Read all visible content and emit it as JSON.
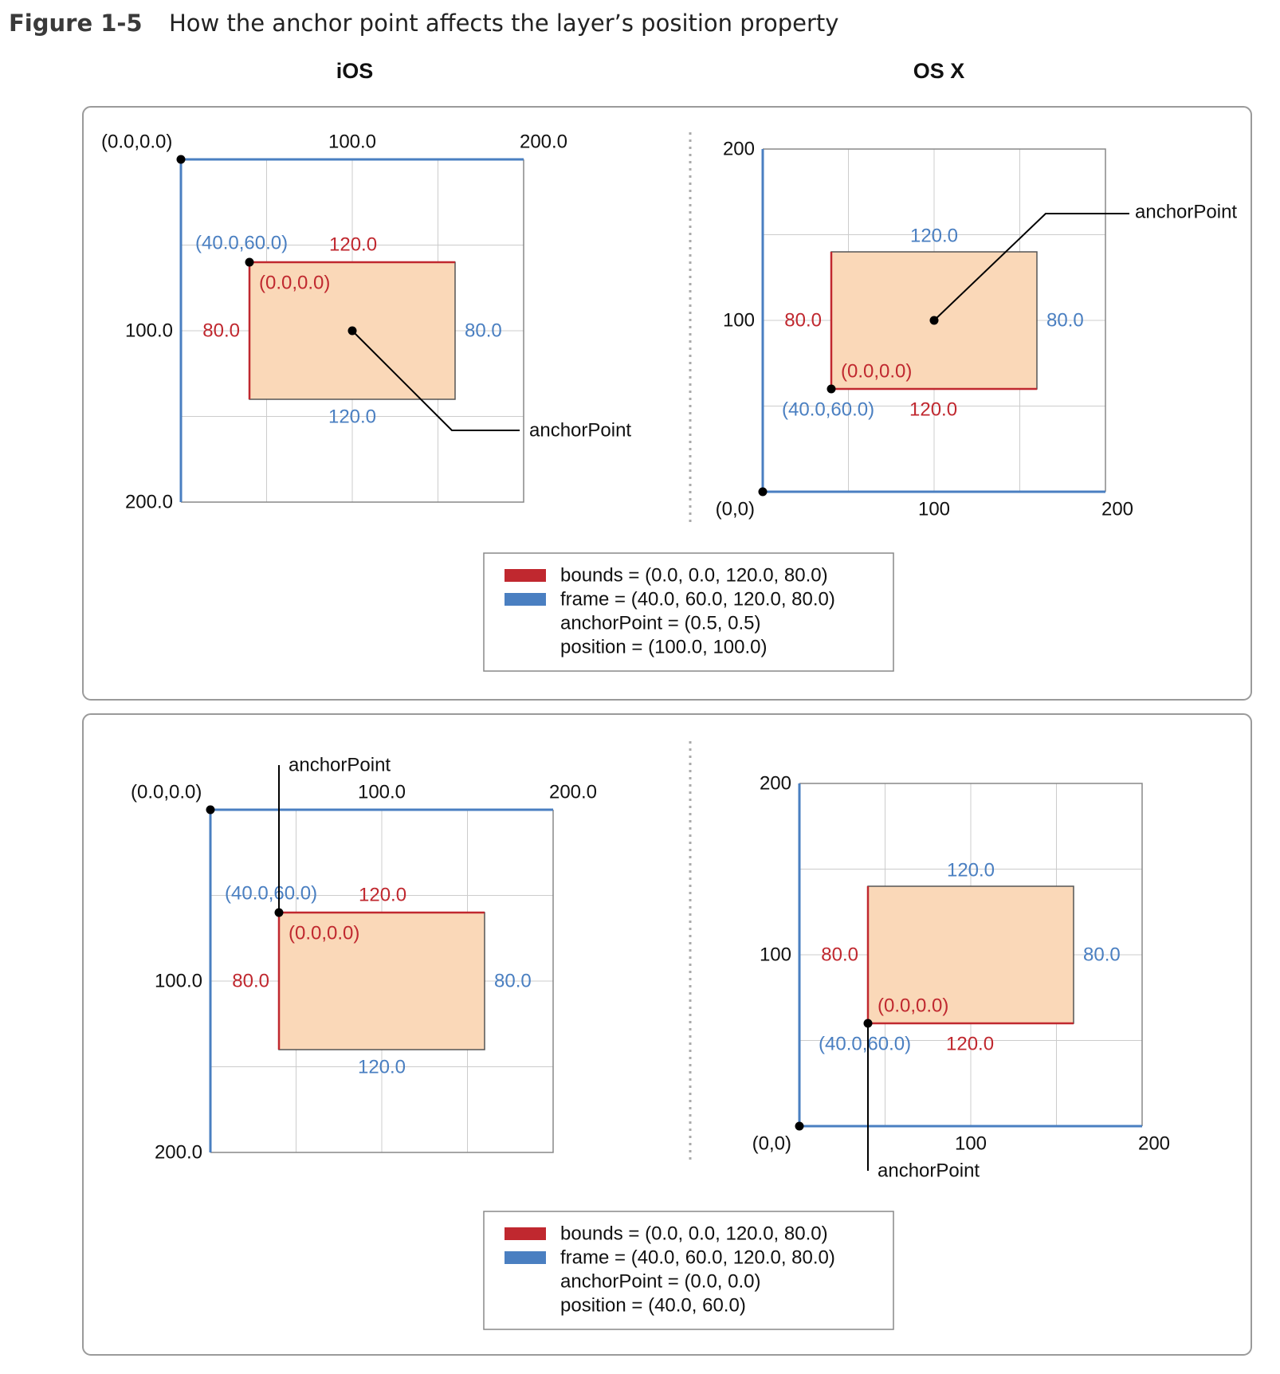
{
  "figure": {
    "label": "Figure 1-5",
    "title": "How the anchor point affects the layer’s position property"
  },
  "columns": {
    "ios": "iOS",
    "osx": "OS X"
  },
  "colors": {
    "bounds": "#c0282f",
    "frame": "#4a7fc1",
    "fill": "#fad8b8",
    "grid": "#cccccc",
    "frame_border": "#888888"
  },
  "panels": [
    {
      "ios": {
        "origin_label": "(0.0,0.0)",
        "x_ticks": [
          "100.0",
          "200.0"
        ],
        "y_ticks": [
          "100.0",
          "200.0"
        ],
        "frame_origin_label": "(40.0,60.0)",
        "bounds_origin_label": "(0.0,0.0)",
        "bounds_width_label": "120.0",
        "bounds_height_label": "80.0",
        "frame_width_label": "120.0",
        "frame_height_label": "80.0",
        "anchor_label": "anchorPoint"
      },
      "osx": {
        "origin_label": "(0,0)",
        "x_ticks": [
          "100",
          "200"
        ],
        "y_ticks": [
          "100",
          "200"
        ],
        "frame_origin_label": "(40.0,60.0)",
        "bounds_origin_label": "(0.0,0.0)",
        "bounds_width_label": "120.0",
        "bounds_height_label": "80.0",
        "frame_width_label": "120.0",
        "frame_height_label": "80.0",
        "anchor_label": "anchorPoint"
      },
      "legend": {
        "bounds": "bounds = (0.0, 0.0, 120.0, 80.0)",
        "frame": "frame = (40.0, 60.0, 120.0, 80.0)",
        "anchorPoint": "anchorPoint = (0.5, 0.5)",
        "position": "position = (100.0, 100.0)"
      }
    },
    {
      "ios": {
        "origin_label": "(0.0,0.0)",
        "x_ticks": [
          "100.0",
          "200.0"
        ],
        "y_ticks": [
          "100.0",
          "200.0"
        ],
        "frame_origin_label": "(40.0,60.0)",
        "bounds_origin_label": "(0.0,0.0)",
        "bounds_width_label": "120.0",
        "bounds_height_label": "80.0",
        "frame_width_label": "120.0",
        "frame_height_label": "80.0",
        "anchor_label": "anchorPoint"
      },
      "osx": {
        "origin_label": "(0,0)",
        "x_ticks": [
          "100",
          "200"
        ],
        "y_ticks": [
          "100",
          "200"
        ],
        "frame_origin_label": "(40.0,60.0)",
        "bounds_origin_label": "(0.0,0.0)",
        "bounds_width_label": "120.0",
        "bounds_height_label": "80.0",
        "frame_width_label": "120.0",
        "frame_height_label": "80.0",
        "anchor_label": "anchorPoint"
      },
      "legend": {
        "bounds": "bounds = (0.0, 0.0, 120.0, 80.0)",
        "frame": "frame = (40.0, 60.0, 120.0, 80.0)",
        "anchorPoint": "anchorPoint = (0.0, 0.0)",
        "position": "position = (40.0, 60.0)"
      }
    }
  ]
}
